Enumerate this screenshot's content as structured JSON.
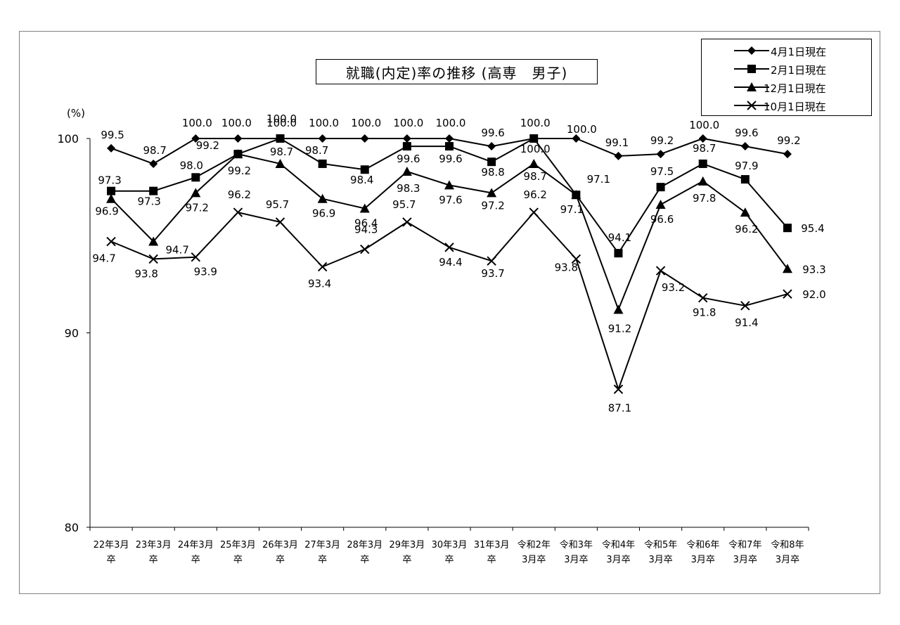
{
  "chart_data": {
    "type": "line",
    "title": "就職(内定)率の推移 (高専　男子)",
    "ylabel": "(%)",
    "ylim": [
      80,
      100
    ],
    "yticks": [
      80,
      90,
      100
    ],
    "legend_position": "top-right",
    "categories": [
      [
        "22年3月",
        "卒"
      ],
      [
        "23年3月",
        "卒"
      ],
      [
        "24年3月",
        "卒"
      ],
      [
        "25年3月",
        "卒"
      ],
      [
        "26年3月",
        "卒"
      ],
      [
        "27年3月",
        "卒"
      ],
      [
        "28年3月",
        "卒"
      ],
      [
        "29年3月",
        "卒"
      ],
      [
        "30年3月",
        "卒"
      ],
      [
        "31年3月",
        "卒"
      ],
      [
        "令和2年",
        "3月卒"
      ],
      [
        "令和3年",
        "3月卒"
      ],
      [
        "令和4年",
        "3月卒"
      ],
      [
        "令和5年",
        "3月卒"
      ],
      [
        "令和6年",
        "3月卒"
      ],
      [
        "令和7年",
        "3月卒"
      ],
      [
        "令和8年",
        "3月卒"
      ]
    ],
    "series": [
      {
        "name": "4月1日現在",
        "marker": "diamond",
        "values": [
          99.5,
          98.7,
          100.0,
          100.0,
          100.0,
          100.0,
          100.0,
          100.0,
          100.0,
          99.6,
          100.0,
          100.0,
          99.1,
          99.2,
          100.0,
          99.6,
          99.2
        ]
      },
      {
        "name": "2月1日現在",
        "marker": "square",
        "values": [
          97.3,
          97.3,
          98.0,
          99.2,
          100.0,
          98.7,
          98.4,
          99.6,
          99.6,
          98.8,
          100.0,
          97.1,
          94.1,
          97.5,
          98.7,
          97.9,
          95.4
        ]
      },
      {
        "name": "12月1日現在",
        "marker": "triangle",
        "values": [
          96.9,
          94.7,
          97.2,
          99.2,
          98.7,
          96.9,
          96.4,
          98.3,
          97.6,
          97.2,
          98.7,
          97.1,
          91.2,
          96.6,
          97.8,
          96.2,
          93.3
        ]
      },
      {
        "name": "10月1日現在",
        "marker": "x",
        "values": [
          94.7,
          93.8,
          93.9,
          96.2,
          95.7,
          93.4,
          94.3,
          95.7,
          94.4,
          93.7,
          96.2,
          93.8,
          87.1,
          93.2,
          91.8,
          91.4,
          92.0
        ]
      }
    ],
    "value_labels": [
      {
        "series": 0,
        "index": 0,
        "text": "99.5"
      },
      {
        "series": 0,
        "index": 1,
        "text": "98.7"
      },
      {
        "series": 0,
        "index": 2,
        "text": "100.0"
      },
      {
        "series": 0,
        "index": 3,
        "text": "100.0"
      },
      {
        "series": 0,
        "index": 4,
        "text": "100.0"
      },
      {
        "series": 0,
        "index": 5,
        "text": "100.0"
      },
      {
        "series": 0,
        "index": 6,
        "text": "100.0"
      },
      {
        "series": 0,
        "index": 7,
        "text": "100.0"
      },
      {
        "series": 0,
        "index": 8,
        "text": "100.0"
      },
      {
        "series": 0,
        "index": 9,
        "text": "99.6"
      },
      {
        "series": 0,
        "index": 10,
        "text": "100.0"
      },
      {
        "series": 0,
        "index": 11,
        "text": "100.0"
      },
      {
        "series": 0,
        "index": 12,
        "text": "99.1"
      },
      {
        "series": 0,
        "index": 13,
        "text": "99.2"
      },
      {
        "series": 0,
        "index": 14,
        "text": "100.0"
      },
      {
        "series": 0,
        "index": 15,
        "text": "99.6"
      },
      {
        "series": 0,
        "index": 16,
        "text": "99.2"
      },
      {
        "series": 1,
        "index": 0,
        "text": "97.3"
      },
      {
        "series": 1,
        "index": 1,
        "text": "97.3"
      },
      {
        "series": 1,
        "index": 2,
        "text": "98.0"
      },
      {
        "series": 1,
        "index": 3,
        "text": "99.2"
      },
      {
        "series": 1,
        "index": 4,
        "text": "100.0"
      },
      {
        "series": 1,
        "index": 5,
        "text": "98.7"
      },
      {
        "series": 1,
        "index": 6,
        "text": "98.4"
      },
      {
        "series": 1,
        "index": 7,
        "text": "99.6"
      },
      {
        "series": 1,
        "index": 8,
        "text": "99.6"
      },
      {
        "series": 1,
        "index": 9,
        "text": "98.8"
      },
      {
        "series": 1,
        "index": 10,
        "text": "100.0"
      },
      {
        "series": 1,
        "index": 11,
        "text": "97.1"
      },
      {
        "series": 1,
        "index": 12,
        "text": "94.1"
      },
      {
        "series": 1,
        "index": 13,
        "text": "97.5"
      },
      {
        "series": 1,
        "index": 14,
        "text": "98.7"
      },
      {
        "series": 1,
        "index": 15,
        "text": "97.9"
      },
      {
        "series": 1,
        "index": 16,
        "text": "95.4"
      },
      {
        "series": 2,
        "index": 0,
        "text": "96.9"
      },
      {
        "series": 2,
        "index": 1,
        "text": "94.7"
      },
      {
        "series": 2,
        "index": 2,
        "text": "97.2"
      },
      {
        "series": 2,
        "index": 3,
        "text": "99.2"
      },
      {
        "series": 2,
        "index": 4,
        "text": "98.7"
      },
      {
        "series": 2,
        "index": 5,
        "text": "96.9"
      },
      {
        "series": 2,
        "index": 6,
        "text": "96.4"
      },
      {
        "series": 2,
        "index": 7,
        "text": "98.3"
      },
      {
        "series": 2,
        "index": 8,
        "text": "97.6"
      },
      {
        "series": 2,
        "index": 9,
        "text": "97.2"
      },
      {
        "series": 2,
        "index": 10,
        "text": "98.7"
      },
      {
        "series": 2,
        "index": 11,
        "text": "97.1"
      },
      {
        "series": 2,
        "index": 12,
        "text": "91.2"
      },
      {
        "series": 2,
        "index": 13,
        "text": "96.6"
      },
      {
        "series": 2,
        "index": 14,
        "text": "97.8"
      },
      {
        "series": 2,
        "index": 15,
        "text": "96.2"
      },
      {
        "series": 2,
        "index": 16,
        "text": "93.3"
      },
      {
        "series": 3,
        "index": 0,
        "text": "94.7"
      },
      {
        "series": 3,
        "index": 1,
        "text": "93.8"
      },
      {
        "series": 3,
        "index": 2,
        "text": "93.9"
      },
      {
        "series": 3,
        "index": 3,
        "text": "96.2"
      },
      {
        "series": 3,
        "index": 4,
        "text": "95.7"
      },
      {
        "series": 3,
        "index": 5,
        "text": "93.4"
      },
      {
        "series": 3,
        "index": 6,
        "text": "94.3"
      },
      {
        "series": 3,
        "index": 7,
        "text": "95.7"
      },
      {
        "series": 3,
        "index": 8,
        "text": "94.4"
      },
      {
        "series": 3,
        "index": 9,
        "text": "93.7"
      },
      {
        "series": 3,
        "index": 10,
        "text": "96.2"
      },
      {
        "series": 3,
        "index": 11,
        "text": "93.8"
      },
      {
        "series": 3,
        "index": 12,
        "text": "87.1"
      },
      {
        "series": 3,
        "index": 13,
        "text": "93.2"
      },
      {
        "series": 3,
        "index": 14,
        "text": "91.8"
      },
      {
        "series": 3,
        "index": 15,
        "text": "91.4"
      },
      {
        "series": 3,
        "index": 16,
        "text": "92.0"
      }
    ]
  }
}
